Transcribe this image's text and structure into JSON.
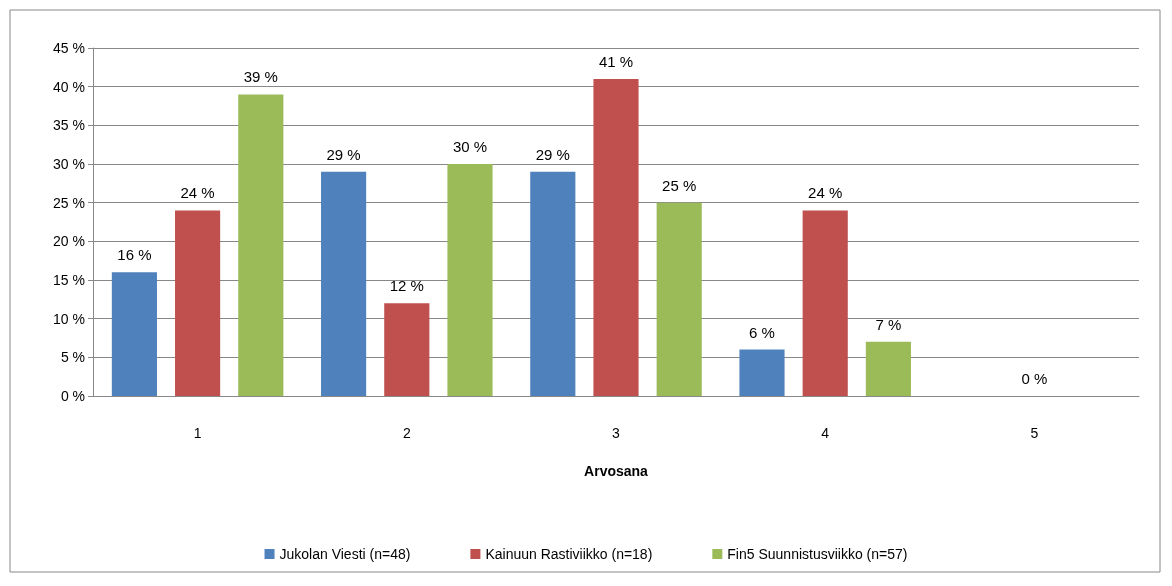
{
  "chart_data": {
    "type": "bar",
    "xlabel": "Arvosana",
    "categories": [
      "1",
      "2",
      "3",
      "4",
      "5"
    ],
    "series": [
      {
        "name": "Jukolan Viesti (n=48)",
        "color": "#4f81bd",
        "values": [
          16,
          29,
          29,
          6,
          null
        ],
        "value_labels": [
          "16 %",
          "29 %",
          "29 %",
          "6 %",
          null
        ]
      },
      {
        "name": "Kainuun Rastiviikko (n=18)",
        "color": "#c0504d",
        "values": [
          24,
          12,
          41,
          24,
          0
        ],
        "value_labels": [
          "24 %",
          "12 %",
          "41 %",
          "24 %",
          "0 %"
        ]
      },
      {
        "name": "Fin5 Suunnistusviikko (n=57)",
        "color": "#9bbb59",
        "values": [
          39,
          30,
          25,
          7,
          null
        ],
        "value_labels": [
          "39 %",
          "30 %",
          "25 %",
          "7 %",
          null
        ]
      }
    ],
    "ylim": [
      0,
      45
    ],
    "yticks": [
      {
        "value": 0,
        "label": "0 %"
      },
      {
        "value": 5,
        "label": "5 %"
      },
      {
        "value": 10,
        "label": "10 %"
      },
      {
        "value": 15,
        "label": "15 %"
      },
      {
        "value": 20,
        "label": "20 %"
      },
      {
        "value": 25,
        "label": "25 %"
      },
      {
        "value": 30,
        "label": "30 %"
      },
      {
        "value": 35,
        "label": "35 %"
      },
      {
        "value": 40,
        "label": "40 %"
      },
      {
        "value": 45,
        "label": "45 %"
      }
    ],
    "grid": "y",
    "legend": "bottom"
  }
}
